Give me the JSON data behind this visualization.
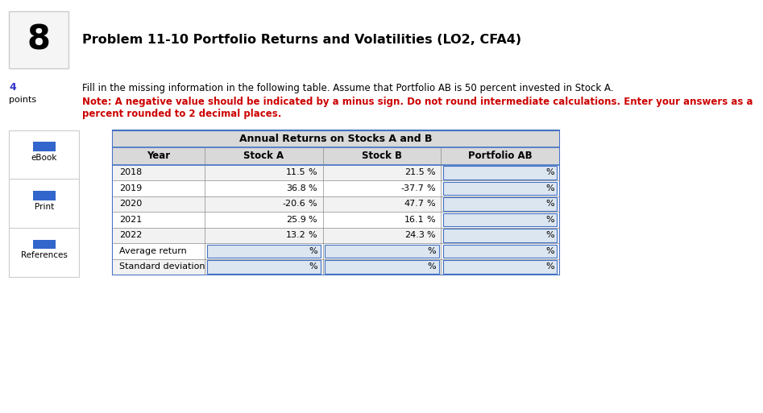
{
  "fig_width": 9.47,
  "fig_height": 5.13,
  "bg_color": "#ffffff",
  "number_text": "8",
  "number_box_color": "#f5f5f5",
  "number_box_border": "#cccccc",
  "title": "Problem 11-10 Portfolio Returns and Volatilities (LO2, CFA4)",
  "desc_text": "Fill in the missing information in the following table. Assume that Portfolio AB is 50 percent invested in Stock A.",
  "note_line1": "Note: A negative value should be indicated by a minus sign. Do not round intermediate calculations. Enter your answers as a",
  "note_line2": "percent rounded to 2 decimal places.",
  "table_title": "Annual Returns on Stocks A and B",
  "col_headers": [
    "Year",
    "Stock A",
    "Stock B",
    "Portfolio AB"
  ],
  "rows": [
    [
      "2018",
      "11.5",
      "21.5",
      ""
    ],
    [
      "2019",
      "36.8",
      "-37.7",
      ""
    ],
    [
      "2020",
      "-20.6",
      "47.7",
      ""
    ],
    [
      "2021",
      "25.9",
      "16.1",
      ""
    ],
    [
      "2022",
      "13.2",
      "24.3",
      ""
    ],
    [
      "Average return",
      "",
      "",
      ""
    ],
    [
      "Standard deviation",
      "",
      "",
      ""
    ]
  ],
  "table_border_color": "#4472c4",
  "table_inner_line": "#888888",
  "table_header_bg": "#d9d9d9",
  "table_white_bg": "#ffffff",
  "table_light_bg": "#f2f2f2",
  "input_cell_bg": "#dce6f1",
  "input_cell_border": "#4472c4",
  "text_color": "#000000",
  "note_color": "#cc0000",
  "sidebar_bg": "#f0f0f0",
  "sidebar_border": "#cccccc",
  "sidebar_icon_color": "#3366cc",
  "points_color": "#3333cc"
}
